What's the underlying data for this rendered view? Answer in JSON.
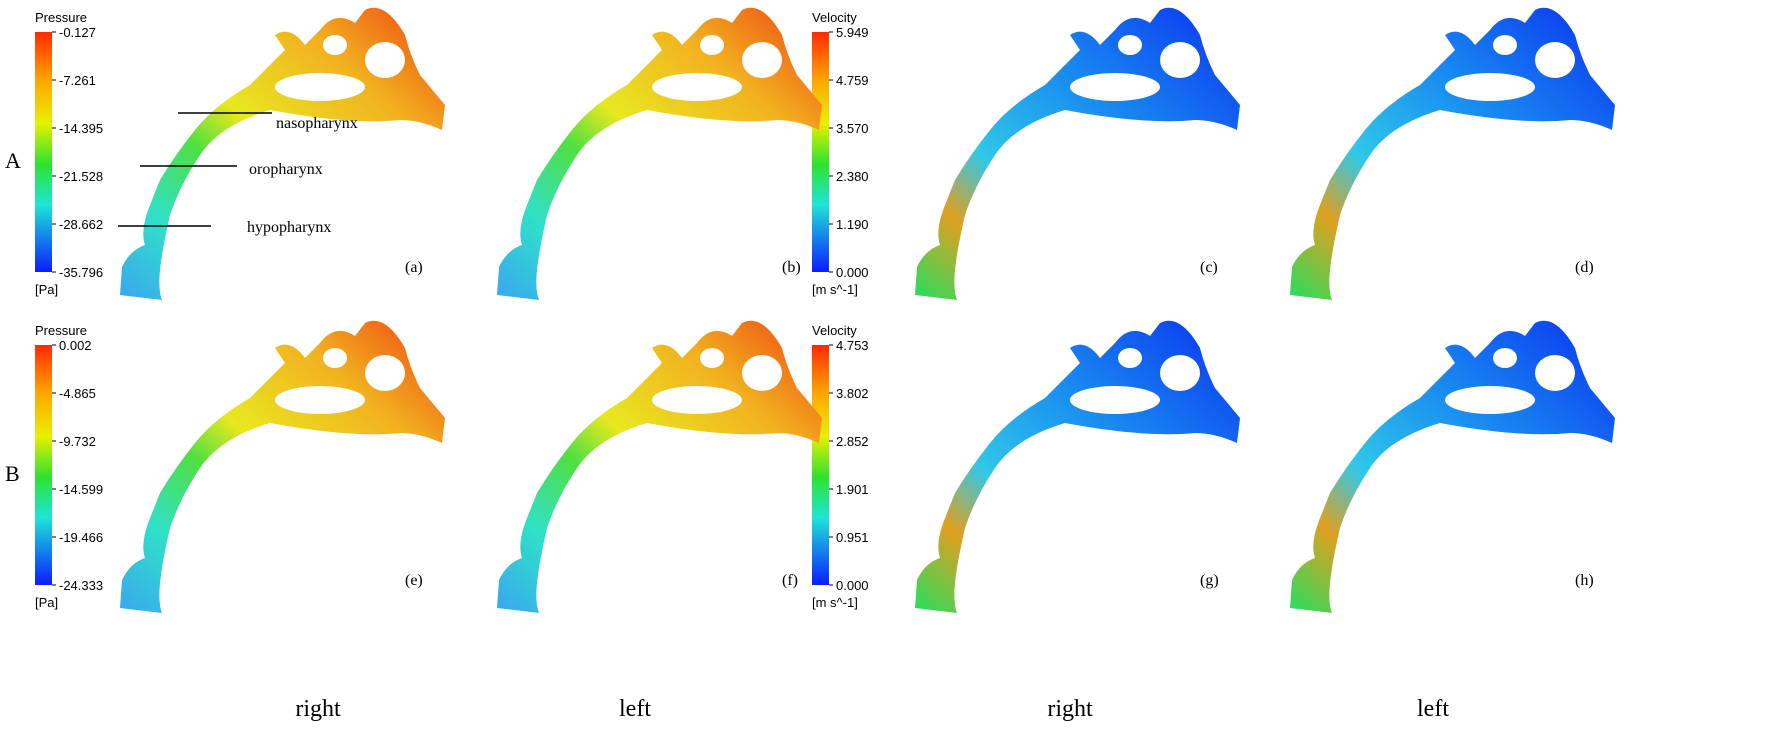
{
  "rows": [
    {
      "label": "A",
      "pressure_colorbar": {
        "title": "Pressure",
        "ticks": [
          "-0.127",
          "-7.261",
          "-14.395",
          "-21.528",
          "-28.662",
          "-35.796"
        ],
        "unit": "[Pa]"
      },
      "velocity_colorbar": {
        "title": "Velocity",
        "ticks": [
          "5.949",
          "4.759",
          "3.570",
          "2.380",
          "1.190",
          "0.000"
        ],
        "unit": "[m s^-1]"
      },
      "panels": [
        "(a)",
        "(b)",
        "(c)",
        "(d)"
      ]
    },
    {
      "label": "B",
      "pressure_colorbar": {
        "title": "Pressure",
        "ticks": [
          "0.002",
          "-4.865",
          "-9.732",
          "-14.599",
          "-19.466",
          "-24.333"
        ],
        "unit": "[Pa]"
      },
      "velocity_colorbar": {
        "title": "Velocity",
        "ticks": [
          "4.753",
          "3.802",
          "2.852",
          "1.901",
          "0.951",
          "0.000"
        ],
        "unit": "[m s^-1]"
      },
      "panels": [
        "(e)",
        "(f)",
        "(g)",
        "(h)"
      ]
    }
  ],
  "annotations": [
    "nasopharynx",
    "oropharynx",
    "hypopharynx"
  ],
  "column_labels": [
    "right",
    "left",
    "right",
    "left"
  ]
}
